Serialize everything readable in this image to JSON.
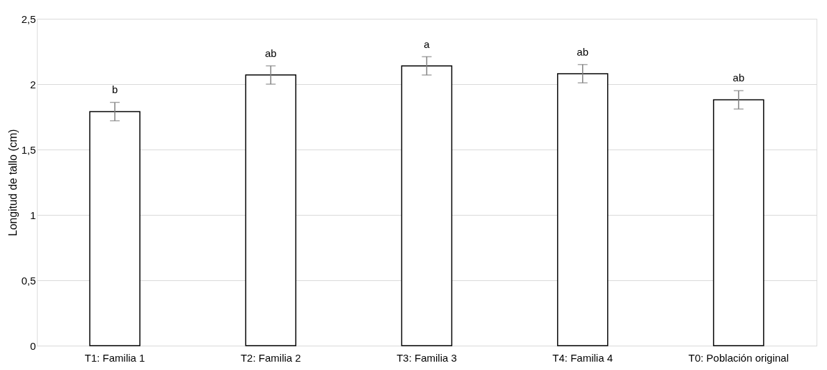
{
  "chart_data": {
    "type": "bar",
    "ylabel": "Longitud de tallo (cm)",
    "categories": [
      "T1: Familia 1",
      "T2: Familia 2",
      "T3: Familia 3",
      "T4: Familia 4",
      "T0: Población original"
    ],
    "values": [
      1.79,
      2.07,
      2.14,
      2.08,
      1.88
    ],
    "errors": [
      0.07,
      0.07,
      0.07,
      0.07,
      0.07
    ],
    "value_labels": [
      "b",
      "ab",
      "a",
      "ab",
      "ab"
    ],
    "color": "#ffffff",
    "ylim": [
      0,
      2.5
    ],
    "yticks": [
      0,
      {
        "value": 0.5,
        "label": "0,5"
      },
      1,
      {
        "value": 1.5,
        "label": "1,5"
      },
      2,
      {
        "value": 2.5,
        "label": "2,5"
      }
    ],
    "grid": "y"
  }
}
